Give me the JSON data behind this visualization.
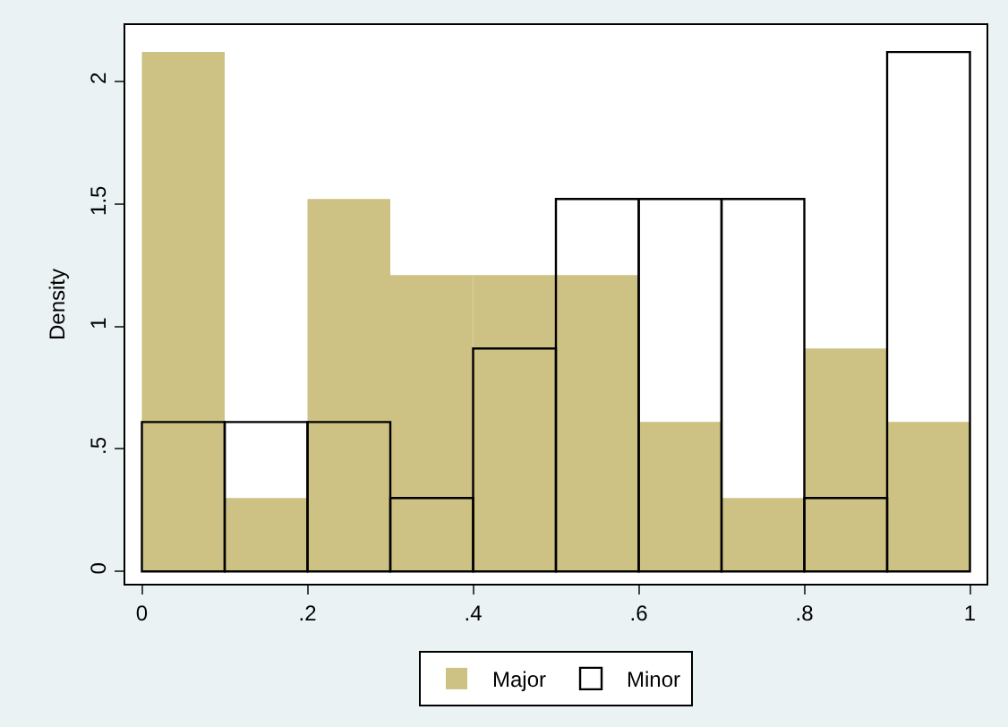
{
  "chart_data": {
    "type": "histogram",
    "ylabel": "Density",
    "bins": [
      0,
      0.1,
      0.2,
      0.3,
      0.4,
      0.5,
      0.6,
      0.7,
      0.8,
      0.9,
      1
    ],
    "series": [
      {
        "name": "Major",
        "color": "#cdc184",
        "values": [
          2.12,
          0.3,
          1.52,
          1.21,
          1.21,
          1.21,
          0.61,
          0.3,
          0.91,
          0.61
        ]
      },
      {
        "name": "Minor",
        "color": "#000000",
        "values": [
          0.61,
          0.61,
          0.61,
          0.3,
          0.91,
          1.52,
          1.52,
          1.52,
          0.3,
          2.12
        ]
      }
    ],
    "xlim": [
      -0.02,
      1.02
    ],
    "xticks": [
      0,
      {
        "value": 0.2,
        "label": ".2"
      },
      {
        "value": 0.4,
        "label": ".4"
      },
      {
        "value": 0.6,
        "label": ".6"
      },
      {
        "value": 0.8,
        "label": ".8"
      },
      1
    ],
    "ylim": [
      -0.05,
      2.23
    ],
    "yticks": [
      0,
      {
        "value": 0.5,
        "label": ".5"
      },
      1,
      1.5,
      2
    ],
    "legend": "bottom",
    "grid": false
  }
}
